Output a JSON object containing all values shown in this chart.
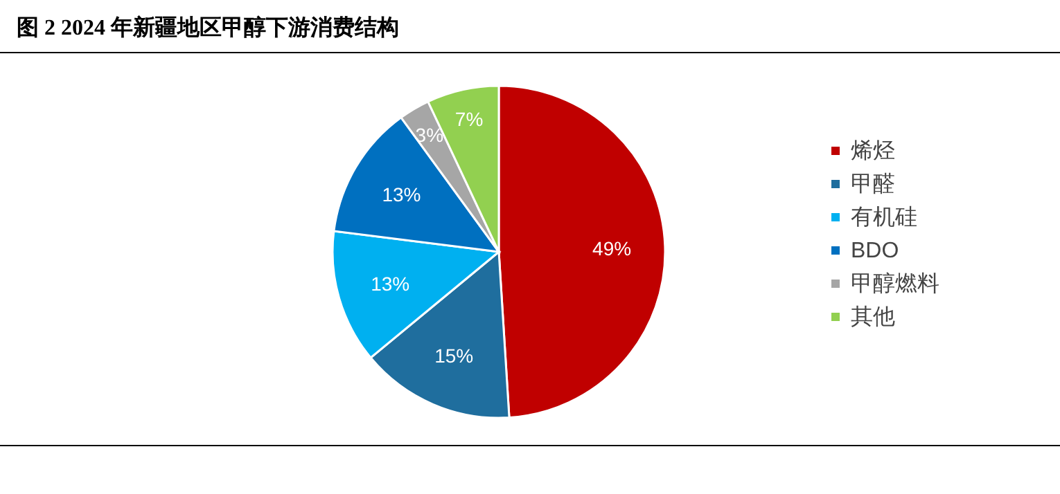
{
  "chart_data": {
    "type": "pie",
    "title": "图 2 2024 年新疆地区甲醇下游消费结构",
    "categories": [
      "烯烃",
      "甲醛",
      "有机硅",
      "BDO",
      "甲醇燃料",
      "其他"
    ],
    "values": [
      49,
      15,
      13,
      13,
      3,
      7
    ],
    "colors": [
      "#c00000",
      "#1f6e9e",
      "#00b0f0",
      "#0070c0",
      "#a6a6a6",
      "#92d050"
    ],
    "value_labels": [
      "49%",
      "15%",
      "13%",
      "13%",
      "3%",
      "7%"
    ],
    "legend": "right"
  }
}
